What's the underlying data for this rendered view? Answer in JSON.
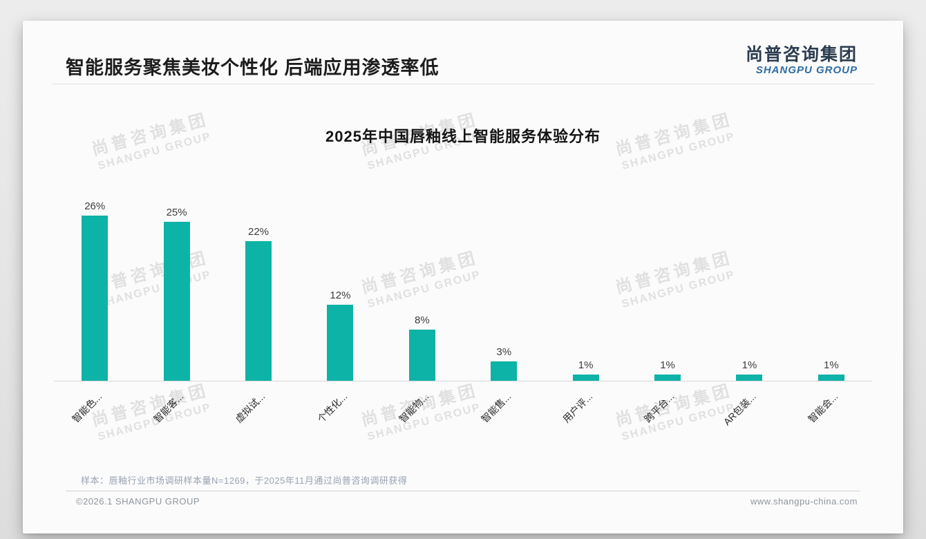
{
  "page": {
    "header": {
      "title": "智能服务聚焦美妆个性化 后端应用渗透率低",
      "logo": {
        "cn": "尚普咨询集团",
        "en": "SHANGPU GROUP"
      }
    },
    "watermark": {
      "cn": "尚普咨询集团",
      "en": "SHANGPU GROUP"
    },
    "footnote": "样本：唇釉行业市场调研样本量N=1269，于2025年11月通过尚普咨询调研获得",
    "footer": {
      "left": "©2026.1 SHANGPU GROUP",
      "right": "www.shangpu-china.com"
    },
    "theme": {
      "brand_blue": "#2d6ca5",
      "brand_dark": "#2c3c50",
      "watermark_gray": "#e0e0e0"
    }
  },
  "chart_data": {
    "type": "bar",
    "title": "2025年中国唇釉线上智能服务体验分布",
    "categories": [
      "智能色...",
      "智能客...",
      "虚拟试...",
      "个性化...",
      "智能物...",
      "智能售...",
      "用户评...",
      "跨平台...",
      "AR包装...",
      "智能会..."
    ],
    "values": [
      26,
      25,
      22,
      12,
      8,
      3,
      1,
      1,
      1,
      1
    ],
    "value_labels": [
      "26%",
      "25%",
      "22%",
      "12%",
      "8%",
      "3%",
      "1%",
      "1%",
      "1%",
      "1%"
    ],
    "bar_color": "#0db3a6",
    "xlabel": "",
    "ylabel": "",
    "ylim": [
      0,
      30
    ],
    "grid": false,
    "legend": null,
    "x_label_rotation": 45
  }
}
